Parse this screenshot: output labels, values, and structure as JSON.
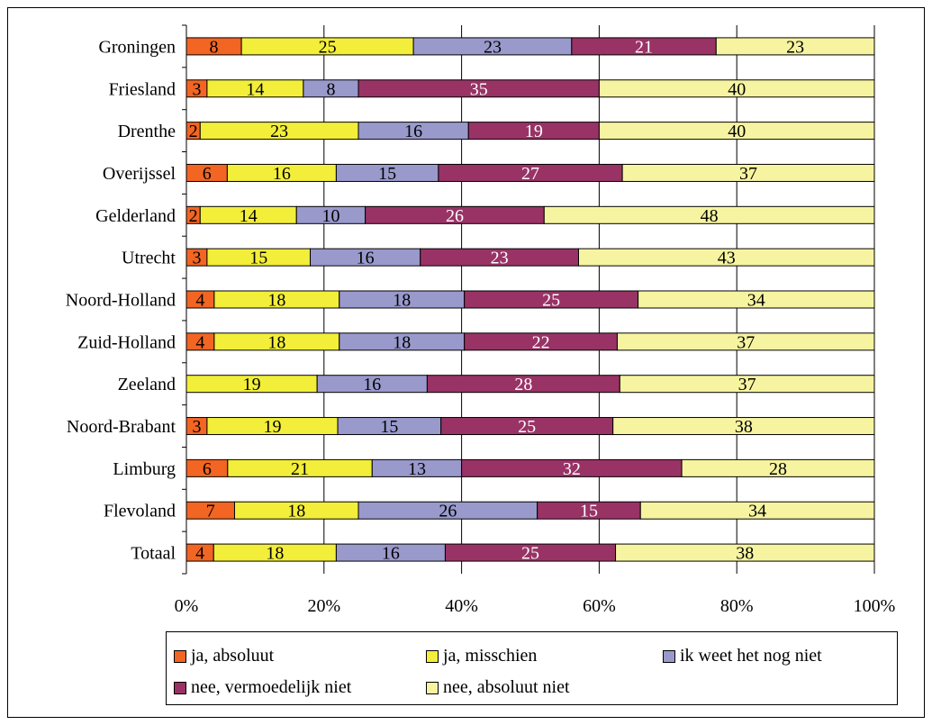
{
  "chart_data": {
    "type": "bar",
    "orientation": "horizontal",
    "stacked": "percent",
    "categories": [
      "Groningen",
      "Friesland",
      "Drenthe",
      "Overijssel",
      "Gelderland",
      "Utrecht",
      "Noord-Holland",
      "Zuid-Holland",
      "Zeeland",
      "Noord-Brabant",
      "Limburg",
      "Flevoland",
      "Totaal"
    ],
    "series": [
      {
        "name": "ja, absoluut",
        "color": "#f26522",
        "label_color": "#000000",
        "values": [
          8,
          3,
          2,
          6,
          2,
          3,
          4,
          4,
          0,
          3,
          6,
          7,
          4
        ]
      },
      {
        "name": "ja, misschien",
        "color": "#f2ee3a",
        "label_color": "#000000",
        "values": [
          25,
          14,
          23,
          16,
          14,
          15,
          18,
          18,
          19,
          19,
          21,
          18,
          18
        ]
      },
      {
        "name": "ik weet het nog niet",
        "color": "#9999cc",
        "label_color": "#000000",
        "values": [
          23,
          8,
          16,
          15,
          10,
          16,
          18,
          18,
          16,
          15,
          13,
          26,
          16
        ]
      },
      {
        "name": "nee, vermoedelijk niet",
        "color": "#993366",
        "label_color": "#ffffff",
        "values": [
          21,
          35,
          19,
          27,
          26,
          23,
          25,
          22,
          28,
          25,
          32,
          15,
          25
        ]
      },
      {
        "name": "nee, absoluut niet",
        "color": "#f6f4a0",
        "label_color": "#000000",
        "values": [
          23,
          40,
          40,
          37,
          48,
          43,
          34,
          37,
          37,
          38,
          28,
          34,
          38
        ]
      }
    ],
    "x_ticks": [
      "0%",
      "20%",
      "40%",
      "60%",
      "80%",
      "100%"
    ],
    "xlim": [
      0,
      100
    ],
    "grid": "vertical",
    "legend_position": "bottom",
    "title": "",
    "xlabel": "",
    "ylabel": ""
  }
}
